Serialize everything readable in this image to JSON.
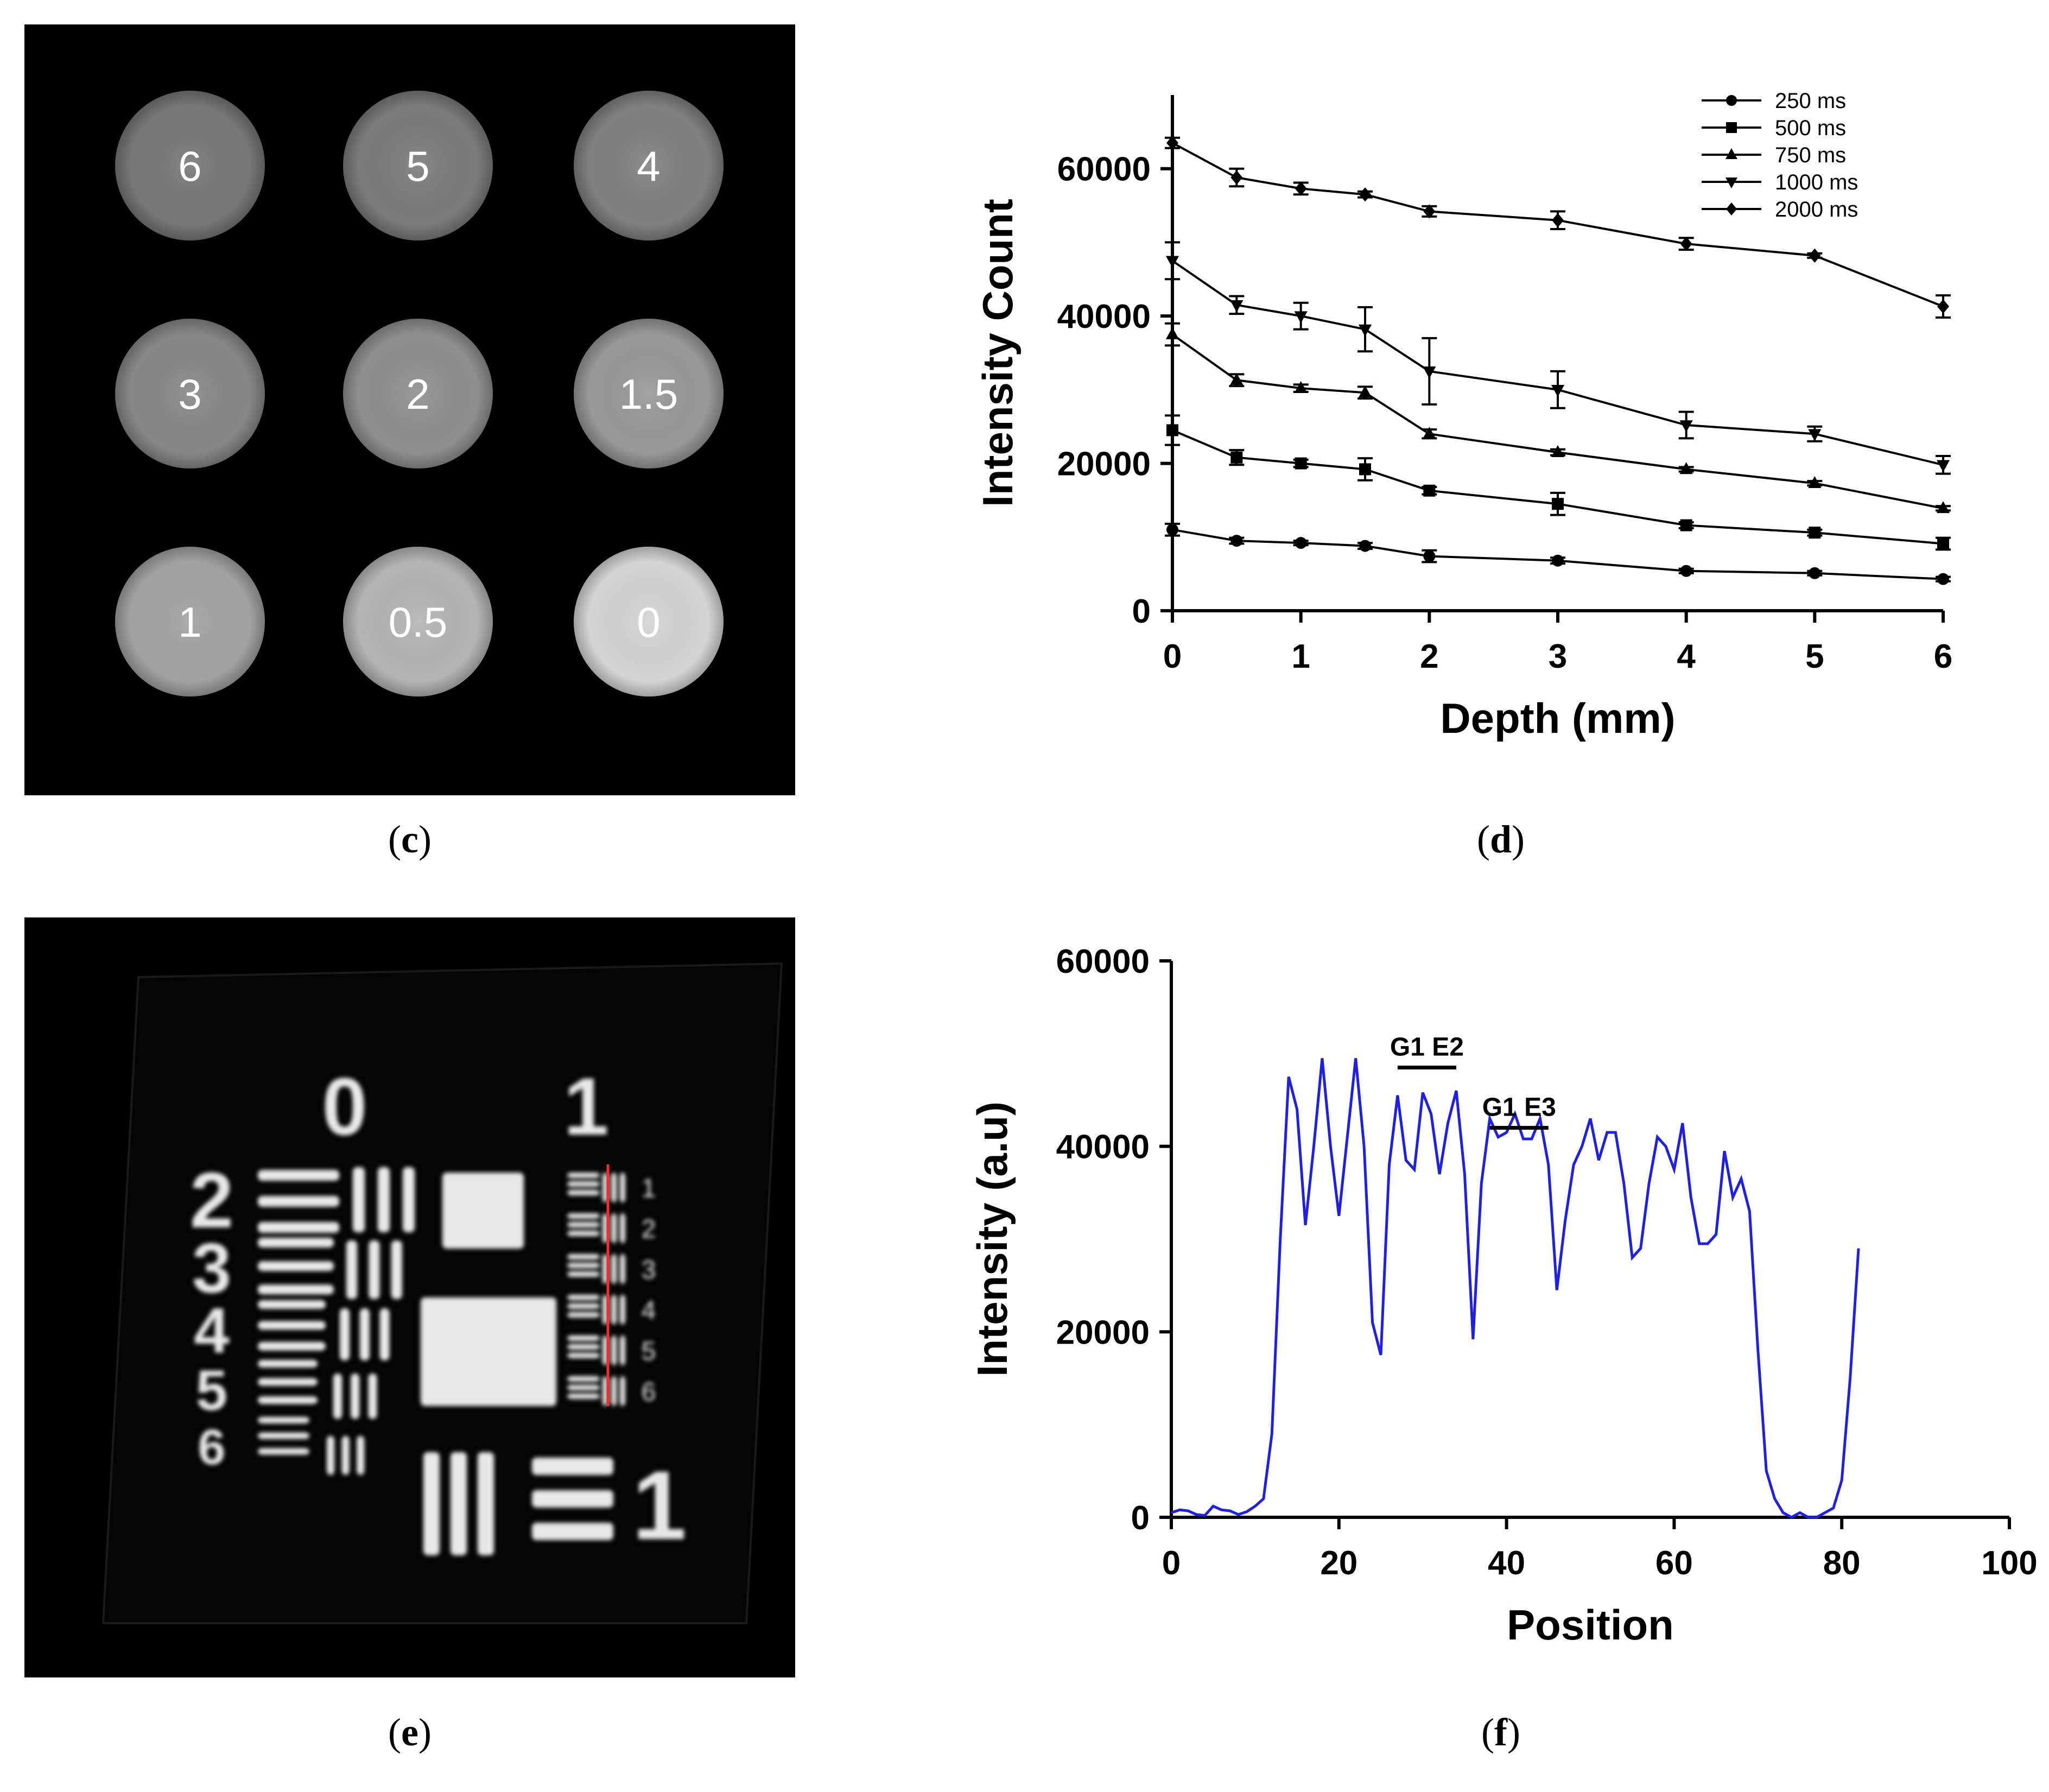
{
  "captions": {
    "c": "c",
    "d": "d",
    "e": "e",
    "f": "f"
  },
  "panel_c": {
    "labels": [
      "6",
      "5",
      "4",
      "3",
      "2",
      "1.5",
      "1",
      "0.5",
      "0"
    ],
    "gray": [
      "#777777",
      "#7b7b7b",
      "#808080",
      "#878787",
      "#8f8f8f",
      "#989898",
      "#a2a2a2",
      "#b4b4b4",
      "#d4d4d4"
    ]
  },
  "panel_e": {
    "group_labels": [
      "0",
      "1"
    ],
    "element_labels": [
      "2",
      "3",
      "4",
      "5",
      "6",
      "1"
    ],
    "small_labels": [
      "1",
      "2",
      "3",
      "4",
      "5",
      "6"
    ],
    "line_color": "#ff2a2a"
  },
  "chart_data": [
    {
      "type": "line",
      "xlabel": "Depth (mm)",
      "ylabel": "Intensity Count",
      "xlim": [
        0,
        6
      ],
      "ylim": [
        0,
        70000
      ],
      "xticks": [
        "0",
        "1",
        "2",
        "3",
        "4",
        "5",
        "6"
      ],
      "yticks": [
        "0",
        "20000",
        "40000",
        "60000"
      ],
      "legend_position": "top-right",
      "x": [
        0,
        0.5,
        1,
        1.5,
        2,
        3,
        4,
        5,
        6
      ],
      "series": [
        {
          "name": "250 ms",
          "marker": "circle",
          "values": [
            11000,
            9500,
            9200,
            8800,
            7400,
            6800,
            5400,
            5100,
            4300
          ],
          "errors": [
            800,
            400,
            300,
            400,
            800,
            400,
            300,
            300,
            300
          ]
        },
        {
          "name": "500 ms",
          "marker": "square",
          "values": [
            24500,
            20800,
            20000,
            19200,
            16300,
            14500,
            11600,
            10600,
            9100
          ],
          "errors": [
            2000,
            1000,
            500,
            1500,
            500,
            1500,
            400,
            400,
            800
          ]
        },
        {
          "name": "750 ms",
          "marker": "triangle-up",
          "values": [
            37500,
            31300,
            30200,
            29600,
            24000,
            21500,
            19200,
            17300,
            13900
          ],
          "errors": [
            1500,
            800,
            500,
            800,
            600,
            400,
            300,
            300,
            300
          ]
        },
        {
          "name": "1000 ms",
          "marker": "triangle-down",
          "values": [
            47500,
            41500,
            40000,
            38200,
            32500,
            30000,
            25200,
            24000,
            19800
          ],
          "errors": [
            2500,
            1200,
            1800,
            3000,
            4500,
            2500,
            1800,
            1000,
            1200
          ]
        },
        {
          "name": "2000 ms",
          "marker": "diamond",
          "values": [
            63500,
            58800,
            57300,
            56500,
            54200,
            53000,
            49800,
            48200,
            41300
          ],
          "errors": [
            700,
            1200,
            800,
            400,
            700,
            1200,
            800,
            300,
            1500
          ]
        }
      ]
    },
    {
      "type": "line",
      "xlabel": "Position",
      "ylabel": "Intensity (a.u)",
      "xlim": [
        0,
        100
      ],
      "ylim": [
        0,
        60000
      ],
      "xticks": [
        "0",
        "20",
        "40",
        "60",
        "80",
        "100"
      ],
      "yticks": [
        "0",
        "20000",
        "40000",
        "60000"
      ],
      "color": "#1f1fe6",
      "annotations": [
        {
          "text": "G1 E2",
          "x_start": 27,
          "x_end": 34,
          "y": 48500
        },
        {
          "text": "G1 E3",
          "x_start": 38,
          "x_end": 45,
          "y": 42000
        }
      ],
      "x": [
        0,
        1,
        2,
        3,
        4,
        5,
        6,
        7,
        8,
        9,
        10,
        11,
        12,
        13,
        14,
        15,
        16,
        17,
        18,
        19,
        20,
        21,
        22,
        23,
        24,
        25,
        26,
        27,
        28,
        29,
        30,
        31,
        32,
        33,
        34,
        35,
        36,
        37,
        38,
        39,
        40,
        41,
        42,
        43,
        44,
        45,
        46,
        47,
        48,
        49,
        50,
        51,
        52,
        53,
        54,
        55,
        56,
        57,
        58,
        59,
        60,
        61,
        62,
        63,
        64,
        65,
        66,
        67,
        68,
        69,
        70,
        71,
        72,
        73,
        74,
        75,
        76,
        77,
        78,
        79,
        80,
        81,
        82
      ],
      "values": [
        500,
        800,
        700,
        300,
        200,
        1200,
        800,
        700,
        300,
        600,
        1200,
        2000,
        9000,
        30000,
        47500,
        44000,
        31500,
        40000,
        49500,
        40000,
        32500,
        41000,
        49500,
        40000,
        21000,
        17500,
        38000,
        45500,
        38500,
        37500,
        45800,
        43500,
        37000,
        42500,
        46000,
        37000,
        19200,
        36000,
        43000,
        41000,
        41500,
        43500,
        40800,
        40800,
        43000,
        38000,
        24500,
        32000,
        38000,
        40000,
        43000,
        38500,
        41500,
        41500,
        36000,
        28000,
        29000,
        36000,
        41000,
        40000,
        37500,
        42500,
        34500,
        29500,
        29500,
        30500,
        39500,
        34500,
        36500,
        33000,
        18000,
        5000,
        2000,
        500,
        0,
        500,
        0,
        0,
        500,
        1000,
        4000,
        15000,
        29000
      ]
    }
  ]
}
